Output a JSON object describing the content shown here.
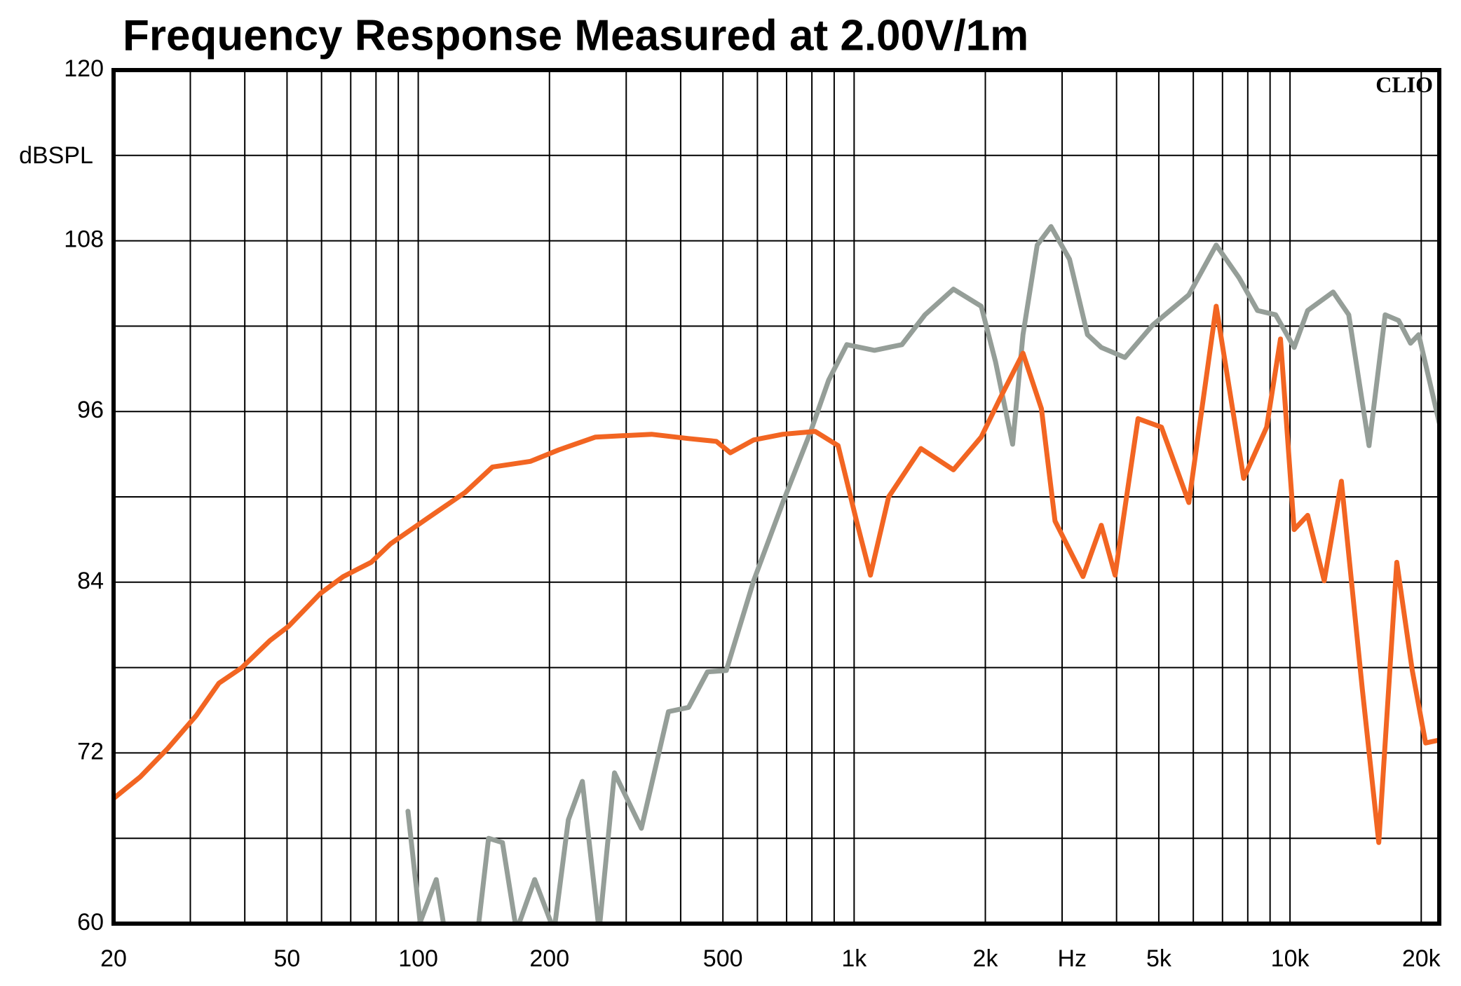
{
  "chart_data": {
    "type": "line",
    "title": "Frequency Response Measured at 2.00V/1m",
    "ylabel": "dBSPL",
    "xlabel": "Hz",
    "annotation": "CLIO",
    "xscale": "log",
    "grid": true,
    "xlim": [
      20,
      22000
    ],
    "ylim": [
      60,
      120
    ],
    "yticks": [
      60,
      72,
      84,
      96,
      108,
      120
    ],
    "y_minor_ticks": [
      66,
      78,
      90,
      102,
      114
    ],
    "xticks": [
      20,
      50,
      100,
      200,
      500,
      {
        "value": 1000,
        "label": "1k"
      },
      {
        "value": 2000,
        "label": "2k"
      },
      {
        "value": 5000,
        "label": "5k"
      },
      {
        "value": 10000,
        "label": "10k"
      },
      {
        "value": 20000,
        "label": "20k"
      }
    ],
    "x_minor_ticks": [
      30,
      40,
      60,
      70,
      80,
      90,
      300,
      400,
      600,
      700,
      800,
      900,
      3000,
      4000,
      6000,
      7000,
      8000,
      9000
    ],
    "series": [
      {
        "name": "orange",
        "color": "#f26522",
        "x": [
          20,
          23,
          26.6,
          30.9,
          34.9,
          39.4,
          45.7,
          50.4,
          59.6,
          67.3,
          78,
          86.4,
          105,
          128,
          148,
          181,
          210,
          255,
          343,
          417,
          483,
          520,
          588,
          686,
          814,
          919,
          1013,
          1090,
          1200,
          1423,
          1690,
          1957,
          2160,
          2440,
          2690,
          2890,
          3350,
          3690,
          3970,
          4480,
          5070,
          5860,
          6770,
          7830,
          8840,
          9510,
          10220,
          10980,
          11980,
          13120,
          14650,
          15980,
          17580,
          19080,
          20470,
          22000
        ],
        "values": [
          68.8,
          70.3,
          72.3,
          74.6,
          76.9,
          78.0,
          79.9,
          80.9,
          83.2,
          84.4,
          85.4,
          86.7,
          88.5,
          90.3,
          92.1,
          92.5,
          93.3,
          94.2,
          94.4,
          94.1,
          93.9,
          93.1,
          94.0,
          94.4,
          94.6,
          93.6,
          88.3,
          84.5,
          90.0,
          93.4,
          91.9,
          94.2,
          96.9,
          100.1,
          96.2,
          88.3,
          84.4,
          88.0,
          84.5,
          95.5,
          94.9,
          89.6,
          103.4,
          91.3,
          94.9,
          101.1,
          87.7,
          88.7,
          84.1,
          91.1,
          76.5,
          65.7,
          85.4,
          77.8,
          72.7,
          72.9
        ]
      },
      {
        "name": "gray",
        "color": "#959e98",
        "x": [
          94.7,
          101,
          110,
          115,
          137,
          145,
          156,
          168,
          185,
          205,
          221,
          238,
          260,
          282,
          325,
          375,
          417,
          461,
          509,
          588,
          686,
          795,
          874,
          962,
          1113,
          1287,
          1454,
          1690,
          1957,
          2110,
          2310,
          2440,
          2630,
          2830,
          3120,
          3430,
          3690,
          4180,
          4850,
          5860,
          6770,
          7640,
          8420,
          9270,
          10220,
          10980,
          12560,
          13640,
          15180,
          16530,
          17750,
          18900,
          19740,
          22000
        ],
        "values": [
          67.9,
          60.1,
          63.1,
          59.5,
          59.5,
          66.0,
          65.7,
          59.5,
          63.1,
          59.5,
          67.3,
          70.0,
          59.5,
          70.6,
          66.7,
          74.9,
          75.2,
          77.7,
          77.8,
          84.1,
          89.6,
          94.6,
          98.2,
          100.7,
          100.3,
          100.7,
          102.8,
          104.6,
          103.4,
          99.5,
          93.7,
          101.4,
          107.7,
          109.0,
          106.7,
          101.4,
          100.5,
          99.8,
          102.1,
          104.2,
          107.7,
          105.4,
          103.1,
          102.8,
          100.5,
          103.1,
          104.4,
          102.8,
          93.6,
          102.8,
          102.4,
          100.8,
          101.4,
          95.2
        ]
      }
    ]
  }
}
